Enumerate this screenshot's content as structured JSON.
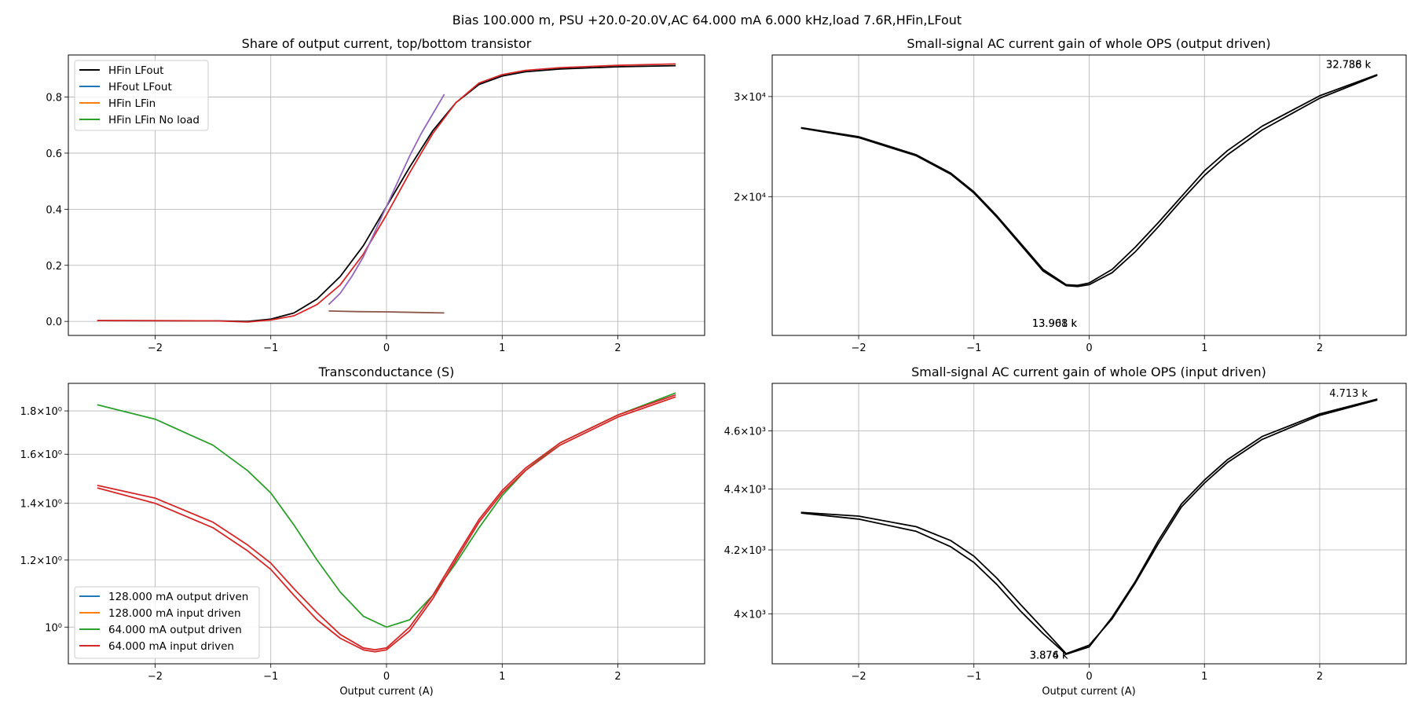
{
  "suptitle": "Bias 100.000 m, PSU +20.0-20.0V,AC 64.000 mA 6.000 kHz,load 7.6R,HFin,LFout",
  "chart_data": [
    {
      "type": "line",
      "title": "Share of output current, top/bottom transistor",
      "xlabel": "",
      "ylabel": "",
      "xlim": [
        -2.75,
        2.75
      ],
      "ylim": [
        -0.05,
        0.95
      ],
      "yscale": "linear",
      "xticks": [
        -2,
        -1,
        0,
        1,
        2
      ],
      "xtick_labels": [
        "−2",
        "−1",
        "0",
        "1",
        "2"
      ],
      "yticks": [
        0.0,
        0.2,
        0.4,
        0.6,
        0.8
      ],
      "ytick_labels": [
        "0.0",
        "0.2",
        "0.4",
        "0.6",
        "0.8"
      ],
      "grid": true,
      "legend_position": "upper-left",
      "series": [
        {
          "name": "HFin LFout",
          "color": "#000000",
          "in_legend": true,
          "x": [
            -2.5,
            -1.5,
            -1.2,
            -1.0,
            -0.8,
            -0.6,
            -0.4,
            -0.2,
            0.0,
            0.2,
            0.4,
            0.6,
            0.8,
            1.0,
            1.2,
            1.5,
            2.0,
            2.5
          ],
          "y": [
            0.003,
            0.002,
            0.0,
            0.008,
            0.03,
            0.08,
            0.16,
            0.27,
            0.41,
            0.55,
            0.68,
            0.78,
            0.845,
            0.875,
            0.89,
            0.9,
            0.908,
            0.912
          ]
        },
        {
          "name": "HFout LFout",
          "color": "#1f77b4",
          "in_legend": true,
          "x": [],
          "y": []
        },
        {
          "name": "HFin LFin",
          "color": "#ff7f0e",
          "in_legend": true,
          "x": [],
          "y": []
        },
        {
          "name": "HFin LFin No load",
          "color": "#2ca02c",
          "in_legend": true,
          "x": [],
          "y": []
        },
        {
          "name": "",
          "color": "#d62728",
          "in_legend": false,
          "x": [
            -2.5,
            -1.5,
            -1.2,
            -1.0,
            -0.8,
            -0.6,
            -0.4,
            -0.2,
            0.0,
            0.2,
            0.4,
            0.6,
            0.8,
            1.0,
            1.2,
            1.5,
            2.0,
            2.5
          ],
          "y": [
            0.003,
            0.002,
            -0.002,
            0.005,
            0.02,
            0.06,
            0.13,
            0.24,
            0.38,
            0.53,
            0.67,
            0.78,
            0.85,
            0.88,
            0.895,
            0.905,
            0.913,
            0.918
          ]
        },
        {
          "name": "",
          "color": "#9467bd",
          "in_legend": false,
          "x": [
            -0.5,
            -0.4,
            -0.3,
            -0.2,
            -0.1,
            0.0,
            0.1,
            0.2,
            0.3,
            0.4,
            0.5
          ],
          "y": [
            0.06,
            0.1,
            0.16,
            0.23,
            0.32,
            0.41,
            0.5,
            0.59,
            0.67,
            0.74,
            0.81
          ]
        },
        {
          "name": "",
          "color": "#8c564b",
          "in_legend": false,
          "x": [
            -0.5,
            -0.25,
            0.0,
            0.25,
            0.5
          ],
          "y": [
            0.037,
            0.035,
            0.034,
            0.032,
            0.03
          ]
        }
      ]
    },
    {
      "type": "line",
      "title": "Small-signal AC current gain of whole OPS (output driven)",
      "xlabel": "",
      "ylabel": "",
      "xlim": [
        -2.75,
        2.75
      ],
      "ylim": [
        11400,
        35500
      ],
      "yscale": "log",
      "xticks": [
        -2,
        -1,
        0,
        1,
        2
      ],
      "xtick_labels": [
        "−2",
        "−1",
        "0",
        "1",
        "2"
      ],
      "yticks": [
        20000,
        30000
      ],
      "ytick_labels": [
        "2×10⁴",
        "3×10⁴"
      ],
      "grid": true,
      "annotations": [
        {
          "text": "13.908 k",
          "x": -0.3,
          "y": 11800
        },
        {
          "text": "13.961 k",
          "x": -0.3,
          "y": 11800
        },
        {
          "text": "32.736 k",
          "x": 2.25,
          "y": 33700
        },
        {
          "text": "32.788 k",
          "x": 2.25,
          "y": 33700
        }
      ],
      "series": [
        {
          "name": "",
          "color": "#000000",
          "x": [
            -2.5,
            -2.0,
            -1.5,
            -1.2,
            -1.0,
            -0.8,
            -0.6,
            -0.4,
            -0.2,
            -0.1,
            0.0,
            0.2,
            0.4,
            0.6,
            0.8,
            1.0,
            1.2,
            1.5,
            2.0,
            2.5
          ],
          "y": [
            26400,
            25400,
            23600,
            21900,
            20300,
            18400,
            16500,
            14800,
            13950,
            13900,
            14000,
            14700,
            16000,
            17700,
            19700,
            21800,
            23700,
            26200,
            29800,
            32700
          ]
        },
        {
          "name": "",
          "color": "#000000",
          "x": [
            -2.5,
            -2.0,
            -1.5,
            -1.2,
            -1.0,
            -0.8,
            -0.6,
            -0.4,
            -0.2,
            -0.1,
            0.0,
            0.2,
            0.4,
            0.6,
            0.8,
            1.0,
            1.2,
            1.5,
            2.0,
            2.5
          ],
          "y": [
            26450,
            25500,
            23700,
            22000,
            20400,
            18500,
            16600,
            14900,
            14000,
            13960,
            14100,
            14900,
            16300,
            18000,
            20000,
            22200,
            24100,
            26600,
            30100,
            32788
          ]
        }
      ]
    },
    {
      "type": "line",
      "title": "Transconductance (S)",
      "xlabel": "Output current (A)",
      "ylabel": "",
      "xlim": [
        -2.75,
        2.75
      ],
      "ylim": [
        0.905,
        1.94
      ],
      "yscale": "log",
      "xticks": [
        -2,
        -1,
        0,
        1,
        2
      ],
      "xtick_labels": [
        "−2",
        "−1",
        "0",
        "1",
        "2"
      ],
      "yticks": [
        1.0,
        1.2,
        1.4,
        1.6,
        1.8
      ],
      "ytick_labels": [
        "10⁰",
        "1.2×10⁰",
        "1.4×10⁰",
        "1.6×10⁰",
        "1.8×10⁰"
      ],
      "grid": true,
      "legend_position": "lower-left",
      "series": [
        {
          "name": "128.000 mA output driven",
          "color": "#1f77b4",
          "in_legend": true,
          "x": [],
          "y": []
        },
        {
          "name": "128.000 mA input driven",
          "color": "#ff7f0e",
          "in_legend": true,
          "x": [],
          "y": []
        },
        {
          "name": "64.000 mA output driven",
          "color": "#2ca02c",
          "in_legend": true,
          "x": [
            -2.5,
            -2.0,
            -1.5,
            -1.2,
            -1.0,
            -0.8,
            -0.6,
            -0.4,
            -0.2,
            0.0,
            0.2,
            0.4,
            0.6,
            0.8,
            1.0,
            1.2,
            1.5,
            2.0,
            2.5
          ],
          "y": [
            1.83,
            1.76,
            1.64,
            1.53,
            1.44,
            1.32,
            1.2,
            1.1,
            1.03,
            1.0,
            1.02,
            1.09,
            1.19,
            1.31,
            1.43,
            1.53,
            1.65,
            1.78,
            1.89
          ]
        },
        {
          "name": "64.000 mA input driven",
          "color": "#d62728",
          "in_legend": true,
          "x": [
            -2.5,
            -2.0,
            -1.5,
            -1.2,
            -1.0,
            -0.8,
            -0.6,
            -0.4,
            -0.2,
            -0.1,
            0.0,
            0.2,
            0.4,
            0.6,
            0.8,
            1.0,
            1.2,
            1.5,
            2.0,
            2.5
          ],
          "y": [
            1.46,
            1.4,
            1.31,
            1.23,
            1.17,
            1.09,
            1.02,
            0.97,
            0.94,
            0.935,
            0.94,
            0.99,
            1.08,
            1.2,
            1.33,
            1.44,
            1.53,
            1.64,
            1.77,
            1.87
          ]
        },
        {
          "name": "",
          "color": "#d62728",
          "in_legend": false,
          "x": [
            -2.5,
            -2.0,
            -1.5,
            -1.2,
            -1.0,
            -0.8,
            -0.6,
            -0.4,
            -0.2,
            -0.1,
            0.0,
            0.2,
            0.4,
            0.6,
            0.8,
            1.0,
            1.2,
            1.5,
            2.0,
            2.5
          ],
          "y": [
            1.47,
            1.42,
            1.33,
            1.25,
            1.19,
            1.11,
            1.04,
            0.98,
            0.945,
            0.94,
            0.945,
            1.0,
            1.09,
            1.21,
            1.34,
            1.45,
            1.54,
            1.65,
            1.78,
            1.88
          ]
        }
      ]
    },
    {
      "type": "line",
      "title": "Small-signal AC current gain of whole OPS (input driven)",
      "xlabel": "Output current (A)",
      "ylabel": "",
      "xlim": [
        -2.75,
        2.75
      ],
      "ylim": [
        3850,
        4770
      ],
      "yscale": "log",
      "xticks": [
        -2,
        -1,
        0,
        1,
        2
      ],
      "xtick_labels": [
        "−2",
        "−1",
        "0",
        "1",
        "2"
      ],
      "yticks": [
        4000,
        4200,
        4400,
        4600
      ],
      "ytick_labels": [
        "4×10³",
        "4.2×10³",
        "4.4×10³",
        "4.6×10³"
      ],
      "grid": true,
      "annotations": [
        {
          "text": "3.874 k",
          "x": -0.35,
          "y": 3865
        },
        {
          "text": "3.876 k",
          "x": -0.35,
          "y": 3865
        },
        {
          "text": "4.713 k",
          "x": 2.25,
          "y": 4722
        }
      ],
      "series": [
        {
          "name": "",
          "color": "#000000",
          "x": [
            -2.5,
            -2.0,
            -1.5,
            -1.2,
            -1.0,
            -0.8,
            -0.6,
            -0.4,
            -0.2,
            0.0,
            0.2,
            0.4,
            0.6,
            0.8,
            1.0,
            1.2,
            1.5,
            2.0,
            2.5
          ],
          "y": [
            4320,
            4300,
            4260,
            4210,
            4160,
            4090,
            4010,
            3940,
            3878,
            3900,
            3990,
            4100,
            4230,
            4350,
            4430,
            4500,
            4580,
            4660,
            4713
          ]
        },
        {
          "name": "",
          "color": "#000000",
          "x": [
            -2.5,
            -2.0,
            -1.5,
            -1.2,
            -1.0,
            -0.8,
            -0.6,
            -0.4,
            -0.2,
            0.0,
            0.2,
            0.4,
            0.6,
            0.8,
            1.0,
            1.2,
            1.5,
            2.0,
            2.5
          ],
          "y": [
            4322,
            4310,
            4275,
            4230,
            4180,
            4110,
            4030,
            3955,
            3880,
            3905,
            3985,
            4095,
            4220,
            4340,
            4420,
            4490,
            4570,
            4655,
            4710
          ]
        }
      ]
    }
  ]
}
